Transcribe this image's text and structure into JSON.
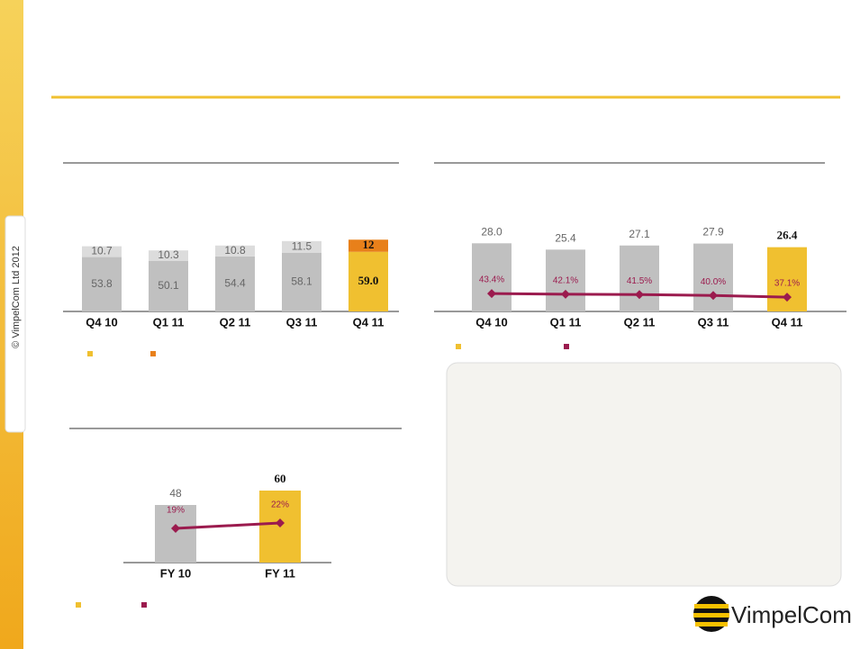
{
  "copyright": "© VimpelCom Ltd 2012",
  "logo": "VimpelCom",
  "chart_data": [
    {
      "type": "bar",
      "stacked": true,
      "categories": [
        "Q4 10",
        "Q1 11",
        "Q2 11",
        "Q3 11",
        "Q4 11"
      ],
      "ylim": [
        0,
        130
      ],
      "series": [
        {
          "colors": [
            "#c0c0c0",
            "#c0c0c0",
            "#c0c0c0",
            "#c0c0c0",
            "#f0c030"
          ],
          "values": [
            53.8,
            50.1,
            54.4,
            58.1,
            59.0
          ],
          "value_labels": [
            "53.8",
            "50.1",
            "54.4",
            "58.1",
            "59.0"
          ]
        },
        {
          "colors": [
            "#dcdcdc",
            "#dcdcdc",
            "#dcdcdc",
            "#dcdcdc",
            "#e8801a"
          ],
          "values": [
            10.7,
            10.3,
            10.8,
            11.5,
            12
          ]
        }
      ]
    },
    {
      "type": "bar",
      "categories": [
        "Q4 10",
        "Q1 11",
        "Q2 11",
        "Q3 11",
        "Q4 11"
      ],
      "ylim": [
        0,
        54
      ],
      "y2lim": [
        12,
        242
      ],
      "series": [
        {
          "type": "bar",
          "colors": [
            "#c0c0c0",
            "#c0c0c0",
            "#c0c0c0",
            "#c0c0c0",
            "#f0c030"
          ],
          "values": [
            28.0,
            25.4,
            27.1,
            27.9,
            26.4
          ],
          "value_labels": [
            "28.0",
            "25.4",
            "27.1",
            "27.9",
            "26.4"
          ]
        },
        {
          "type": "line",
          "axis": "y2",
          "color": "#9b1b4e",
          "values": [
            43.4,
            42.1,
            41.5,
            40.0,
            37.1
          ],
          "value_labels": [
            "43.4%",
            "42.1%",
            "41.5%",
            "40.0%",
            "37.1%"
          ]
        }
      ]
    },
    {
      "type": "bar",
      "categories": [
        "FY 10",
        "FY 11"
      ],
      "ylim": [
        0,
        90
      ],
      "y2lim": [
        0,
        60
      ],
      "series": [
        {
          "type": "bar",
          "colors": [
            "#c0c0c0",
            "#f0c030"
          ],
          "values": [
            48,
            60
          ]
        },
        {
          "type": "line",
          "axis": "y2",
          "color": "#9b1b4e",
          "values": [
            19,
            22
          ],
          "value_labels": [
            "19%",
            "22%"
          ]
        }
      ]
    }
  ]
}
